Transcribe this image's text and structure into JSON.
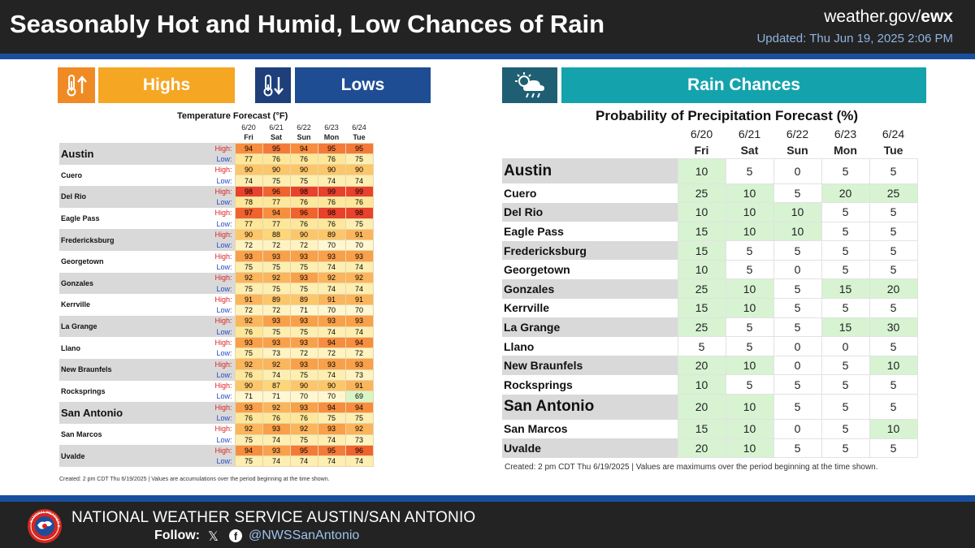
{
  "header": {
    "title": "Seasonably Hot and Humid, Low Chances of Rain",
    "site_prefix": "weather.gov/",
    "site_office": "ewx",
    "updated": "Updated: Thu Jun 19, 2025 2:06 PM"
  },
  "left": {
    "highs_label": "Highs",
    "lows_label": "Lows",
    "highs_icon": "thermometer-up-icon",
    "lows_icon": "thermometer-down-icon",
    "table_title": "Temperature Forecast (°F)",
    "dates": [
      "6/20",
      "6/21",
      "6/22",
      "6/23",
      "6/24"
    ],
    "days": [
      "Fri",
      "Sat",
      "Sun",
      "Mon",
      "Tue"
    ],
    "high_label": "High:",
    "low_label": "Low:",
    "cities": [
      {
        "name": "Austin",
        "big": true,
        "high": [
          94,
          95,
          94,
          95,
          95
        ],
        "low": [
          77,
          76,
          76,
          76,
          75
        ]
      },
      {
        "name": "Cuero",
        "big": false,
        "high": [
          90,
          90,
          90,
          90,
          90
        ],
        "low": [
          74,
          75,
          75,
          74,
          74
        ]
      },
      {
        "name": "Del Rio",
        "big": false,
        "high": [
          98,
          96,
          98,
          99,
          99
        ],
        "low": [
          78,
          77,
          76,
          76,
          76
        ]
      },
      {
        "name": "Eagle Pass",
        "big": false,
        "high": [
          97,
          94,
          96,
          98,
          98
        ],
        "low": [
          77,
          77,
          76,
          76,
          75
        ]
      },
      {
        "name": "Fredericksburg",
        "big": false,
        "high": [
          90,
          88,
          90,
          89,
          91
        ],
        "low": [
          72,
          72,
          72,
          70,
          70
        ]
      },
      {
        "name": "Georgetown",
        "big": false,
        "high": [
          93,
          93,
          93,
          93,
          93
        ],
        "low": [
          75,
          75,
          75,
          74,
          74
        ]
      },
      {
        "name": "Gonzales",
        "big": false,
        "high": [
          92,
          92,
          93,
          92,
          92
        ],
        "low": [
          75,
          75,
          75,
          74,
          74
        ]
      },
      {
        "name": "Kerrville",
        "big": false,
        "high": [
          91,
          89,
          89,
          91,
          91
        ],
        "low": [
          72,
          72,
          71,
          70,
          70
        ]
      },
      {
        "name": "La Grange",
        "big": false,
        "high": [
          92,
          93,
          93,
          93,
          93
        ],
        "low": [
          76,
          75,
          75,
          74,
          74
        ]
      },
      {
        "name": "Llano",
        "big": false,
        "high": [
          93,
          93,
          93,
          94,
          94
        ],
        "low": [
          75,
          73,
          72,
          72,
          72
        ]
      },
      {
        "name": "New Braunfels",
        "big": false,
        "high": [
          92,
          92,
          93,
          93,
          93
        ],
        "low": [
          76,
          74,
          75,
          74,
          73
        ]
      },
      {
        "name": "Rocksprings",
        "big": false,
        "high": [
          90,
          87,
          90,
          90,
          91
        ],
        "low": [
          71,
          71,
          70,
          70,
          69
        ]
      },
      {
        "name": "San Antonio",
        "big": true,
        "high": [
          93,
          92,
          93,
          94,
          94
        ],
        "low": [
          76,
          76,
          76,
          75,
          75
        ]
      },
      {
        "name": "San Marcos",
        "big": false,
        "high": [
          92,
          93,
          92,
          93,
          92
        ],
        "low": [
          75,
          74,
          75,
          74,
          73
        ]
      },
      {
        "name": "Uvalde",
        "big": false,
        "high": [
          94,
          93,
          95,
          95,
          96
        ],
        "low": [
          75,
          74,
          74,
          74,
          74
        ]
      }
    ],
    "footnote": "Created: 2 pm CDT Thu 6/19/2025  |  Values are accumulations over the period beginning at the time shown."
  },
  "right": {
    "banner_label": "Rain Chances",
    "banner_icon": "cloud-sun-rain-icon",
    "table_title": "Probability of Precipitation Forecast (%)",
    "dates": [
      "6/20",
      "6/21",
      "6/22",
      "6/23",
      "6/24"
    ],
    "days": [
      "Fri",
      "Sat",
      "Sun",
      "Mon",
      "Tue"
    ],
    "cities": [
      {
        "name": "Austin",
        "big": true,
        "pop": [
          10,
          5,
          0,
          5,
          5
        ]
      },
      {
        "name": "Cuero",
        "big": false,
        "pop": [
          25,
          10,
          5,
          20,
          25
        ]
      },
      {
        "name": "Del Rio",
        "big": false,
        "pop": [
          10,
          10,
          10,
          5,
          5
        ]
      },
      {
        "name": "Eagle Pass",
        "big": false,
        "pop": [
          15,
          10,
          10,
          5,
          5
        ]
      },
      {
        "name": "Fredericksburg",
        "big": false,
        "pop": [
          15,
          5,
          5,
          5,
          5
        ]
      },
      {
        "name": "Georgetown",
        "big": false,
        "pop": [
          10,
          5,
          0,
          5,
          5
        ]
      },
      {
        "name": "Gonzales",
        "big": false,
        "pop": [
          25,
          10,
          5,
          15,
          20
        ]
      },
      {
        "name": "Kerrville",
        "big": false,
        "pop": [
          15,
          10,
          5,
          5,
          5
        ]
      },
      {
        "name": "La Grange",
        "big": false,
        "pop": [
          25,
          5,
          5,
          15,
          30
        ]
      },
      {
        "name": "Llano",
        "big": false,
        "pop": [
          5,
          5,
          0,
          0,
          5
        ]
      },
      {
        "name": "New Braunfels",
        "big": false,
        "pop": [
          20,
          10,
          0,
          5,
          10
        ]
      },
      {
        "name": "Rocksprings",
        "big": false,
        "pop": [
          10,
          5,
          5,
          5,
          5
        ]
      },
      {
        "name": "San Antonio",
        "big": true,
        "pop": [
          20,
          10,
          5,
          5,
          5
        ]
      },
      {
        "name": "San Marcos",
        "big": false,
        "pop": [
          15,
          10,
          0,
          5,
          10
        ]
      },
      {
        "name": "Uvalde",
        "big": false,
        "pop": [
          20,
          10,
          5,
          5,
          5
        ]
      }
    ],
    "footnote": "Created: 2 pm CDT Thu 6/19/2025  |  Values are maximums over the period beginning at the time shown."
  },
  "footer": {
    "office_name": "NATIONAL WEATHER SERVICE AUSTIN/SAN ANTONIO",
    "follow_label": "Follow:",
    "x_icon": "x-logo-icon",
    "fb_icon": "facebook-icon",
    "handle": "@NWSSanAntonio",
    "logo": "nws-logo",
    "logo_text": "NATIONAL WEATHER SERVICE"
  },
  "colors": {
    "header_bg": "#232323",
    "accent_blue": "#1a4fa0",
    "highs_orange": "#f5a623",
    "lows_blue": "#1e4d94",
    "rain_teal": "#14a3ad",
    "pop_green": "#d7f3d2"
  }
}
